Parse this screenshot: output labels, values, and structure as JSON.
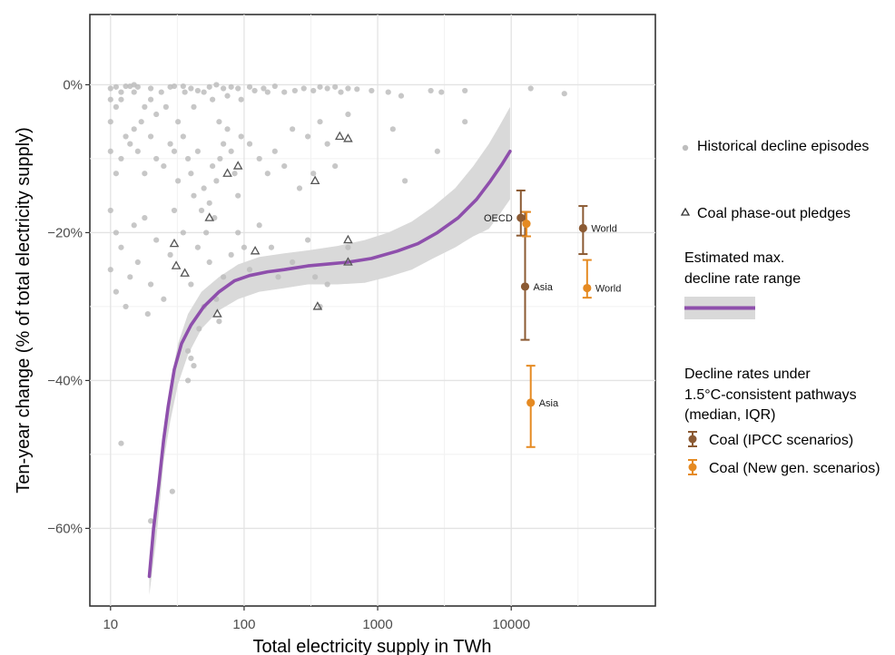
{
  "chart_data": {
    "type": "scatter",
    "xlabel": "Total electricity supply in TWh",
    "ylabel": "Ten-year change (% of total electricity supply)",
    "x_scale": "log10",
    "xlim": [
      7,
      120000
    ],
    "ylim": [
      -70.5,
      9.5
    ],
    "x_ticks": [
      {
        "value": 10,
        "label": "10"
      },
      {
        "value": 100,
        "label": "100"
      },
      {
        "value": 1000,
        "label": "1000"
      },
      {
        "value": 10000,
        "label": "10000"
      }
    ],
    "y_ticks": [
      {
        "value": 0,
        "label": "0%"
      },
      {
        "value": -20,
        "label": "−20%"
      },
      {
        "value": -40,
        "label": "−40%"
      },
      {
        "value": -60,
        "label": "−60%"
      }
    ],
    "grid": true,
    "legend_position": "right",
    "legend": {
      "historical": "Historical decline episodes",
      "pledges": "Coal phase-out pledges",
      "max_rate_line1": "Estimated max.",
      "max_rate_line2": "decline rate range",
      "pathways_line1": "Decline rates under",
      "pathways_line2": "1.5°C-consistent pathways",
      "pathways_line3": "(median, IQR)",
      "ipcc": "Coal (IPCC scenarios)",
      "newgen": "Coal (New gen. scenarios)"
    },
    "colors": {
      "historical": "#bdbdbd",
      "curve": "#8e4fac",
      "band": "#d9d9d9",
      "ipcc": "#8b5a33",
      "newgen": "#e58a22",
      "pledge": "#555555"
    },
    "historical_decline_episodes": [
      [
        10,
        -0.5
      ],
      [
        10,
        -2
      ],
      [
        10,
        -5
      ],
      [
        11,
        -0.3
      ],
      [
        11,
        -3
      ],
      [
        12,
        -1
      ],
      [
        12,
        -2
      ],
      [
        13,
        -0.2
      ],
      [
        14,
        -0.2
      ],
      [
        15,
        0
      ],
      [
        15,
        -1
      ],
      [
        16,
        -0.3
      ],
      [
        17,
        -5
      ],
      [
        18,
        -3
      ],
      [
        20,
        -0.5
      ],
      [
        20,
        -2
      ],
      [
        22,
        -4
      ],
      [
        24,
        -1
      ],
      [
        26,
        -3
      ],
      [
        28,
        -0.3
      ],
      [
        30,
        -0.2
      ],
      [
        32,
        -5
      ],
      [
        35,
        -0.2
      ],
      [
        36,
        -1
      ],
      [
        40,
        -0.5
      ],
      [
        42,
        -3
      ],
      [
        45,
        -0.8
      ],
      [
        50,
        -1
      ],
      [
        55,
        -0.3
      ],
      [
        58,
        -2
      ],
      [
        62,
        0
      ],
      [
        65,
        -5
      ],
      [
        70,
        -0.5
      ],
      [
        75,
        -1.5
      ],
      [
        80,
        -0.3
      ],
      [
        90,
        -0.5
      ],
      [
        95,
        -2
      ],
      [
        110,
        -0.3
      ],
      [
        120,
        -0.8
      ],
      [
        140,
        -0.5
      ],
      [
        150,
        -1
      ],
      [
        170,
        -0.2
      ],
      [
        200,
        -1
      ],
      [
        240,
        -0.8
      ],
      [
        280,
        -0.5
      ],
      [
        330,
        -0.8
      ],
      [
        370,
        -0.3
      ],
      [
        420,
        -0.5
      ],
      [
        480,
        -0.3
      ],
      [
        530,
        -1
      ],
      [
        600,
        -0.5
      ],
      [
        700,
        -0.6
      ],
      [
        900,
        -0.8
      ],
      [
        1200,
        -1
      ],
      [
        1500,
        -1.5
      ],
      [
        2500,
        -0.8
      ],
      [
        3000,
        -1
      ],
      [
        4500,
        -0.8
      ],
      [
        14000,
        -0.5
      ],
      [
        25000,
        -1.2
      ],
      [
        10,
        -9
      ],
      [
        11,
        -12
      ],
      [
        12,
        -10
      ],
      [
        13,
        -7
      ],
      [
        14,
        -8
      ],
      [
        15,
        -6
      ],
      [
        16,
        -9
      ],
      [
        18,
        -12
      ],
      [
        20,
        -7
      ],
      [
        22,
        -10
      ],
      [
        25,
        -11
      ],
      [
        28,
        -8
      ],
      [
        30,
        -9
      ],
      [
        32,
        -13
      ],
      [
        35,
        -7
      ],
      [
        38,
        -10
      ],
      [
        40,
        -12
      ],
      [
        42,
        -15
      ],
      [
        45,
        -9
      ],
      [
        48,
        -17
      ],
      [
        50,
        -14
      ],
      [
        52,
        -20
      ],
      [
        55,
        -16
      ],
      [
        58,
        -11
      ],
      [
        62,
        -13
      ],
      [
        66,
        -10
      ],
      [
        70,
        -8
      ],
      [
        75,
        -6
      ],
      [
        80,
        -9
      ],
      [
        85,
        -12
      ],
      [
        90,
        -15
      ],
      [
        95,
        -7
      ],
      [
        110,
        -8
      ],
      [
        130,
        -10
      ],
      [
        150,
        -12
      ],
      [
        170,
        -9
      ],
      [
        200,
        -11
      ],
      [
        230,
        -6
      ],
      [
        260,
        -14
      ],
      [
        300,
        -7
      ],
      [
        330,
        -12
      ],
      [
        370,
        -5
      ],
      [
        420,
        -8
      ],
      [
        480,
        -11
      ],
      [
        600,
        -4
      ],
      [
        1300,
        -6
      ],
      [
        1600,
        -13
      ],
      [
        2800,
        -9
      ],
      [
        4500,
        -5
      ],
      [
        10,
        -17
      ],
      [
        10,
        -25
      ],
      [
        11,
        -20
      ],
      [
        11,
        -28
      ],
      [
        12,
        -22
      ],
      [
        13,
        -30
      ],
      [
        14,
        -26
      ],
      [
        15,
        -19
      ],
      [
        16,
        -24
      ],
      [
        18,
        -18
      ],
      [
        20,
        -27
      ],
      [
        22,
        -21
      ],
      [
        25,
        -29
      ],
      [
        28,
        -23
      ],
      [
        30,
        -17
      ],
      [
        35,
        -20
      ],
      [
        40,
        -27
      ],
      [
        45,
        -22
      ],
      [
        50,
        -30
      ],
      [
        55,
        -24
      ],
      [
        60,
        -18
      ],
      [
        62,
        -29
      ],
      [
        65,
        -32
      ],
      [
        70,
        -26
      ],
      [
        80,
        -23
      ],
      [
        90,
        -20
      ],
      [
        100,
        -22
      ],
      [
        110,
        -25
      ],
      [
        130,
        -19
      ],
      [
        160,
        -22
      ],
      [
        180,
        -26
      ],
      [
        230,
        -24
      ],
      [
        300,
        -21
      ],
      [
        340,
        -26
      ],
      [
        370,
        -30
      ],
      [
        420,
        -27
      ],
      [
        600,
        -22
      ],
      [
        19,
        -31
      ],
      [
        38,
        -36
      ],
      [
        40,
        -37
      ],
      [
        42,
        -38
      ],
      [
        46,
        -33
      ],
      [
        38,
        -40
      ],
      [
        12,
        -48.5
      ],
      [
        29,
        -55
      ],
      [
        20,
        -59
      ]
    ],
    "coal_phase_out_pledges": [
      [
        30,
        -21.5
      ],
      [
        31,
        -24.5
      ],
      [
        36,
        -25.5
      ],
      [
        55,
        -18
      ],
      [
        63,
        -31
      ],
      [
        75,
        -12
      ],
      [
        90,
        -11
      ],
      [
        121,
        -22.5
      ],
      [
        340,
        -13
      ],
      [
        355,
        -30
      ],
      [
        520,
        -7
      ],
      [
        600,
        -7.3
      ],
      [
        600,
        -21
      ],
      [
        600,
        -24
      ]
    ],
    "max_decline_rate_curve": [
      [
        19.5,
        -66.5
      ],
      [
        21,
        -60
      ],
      [
        23,
        -54
      ],
      [
        25,
        -48
      ],
      [
        27,
        -43.5
      ],
      [
        30,
        -38.5
      ],
      [
        34,
        -35
      ],
      [
        40,
        -32.5
      ],
      [
        50,
        -30
      ],
      [
        65,
        -28
      ],
      [
        85,
        -26.5
      ],
      [
        110,
        -25.8
      ],
      [
        150,
        -25.3
      ],
      [
        200,
        -25
      ],
      [
        300,
        -24.5
      ],
      [
        450,
        -24.2
      ],
      [
        600,
        -24
      ],
      [
        900,
        -23.5
      ],
      [
        1400,
        -22.5
      ],
      [
        2000,
        -21.5
      ],
      [
        2800,
        -20
      ],
      [
        4000,
        -18
      ],
      [
        5500,
        -15.5
      ],
      [
        7000,
        -13
      ],
      [
        8500,
        -10.8
      ],
      [
        9800,
        -9
      ]
    ],
    "band_upper": [
      [
        19.5,
        -64
      ],
      [
        22,
        -56
      ],
      [
        25,
        -47
      ],
      [
        28,
        -40.5
      ],
      [
        32,
        -35
      ],
      [
        38,
        -31
      ],
      [
        48,
        -28
      ],
      [
        65,
        -26
      ],
      [
        90,
        -24.3
      ],
      [
        130,
        -23.3
      ],
      [
        200,
        -22.8
      ],
      [
        300,
        -22.4
      ],
      [
        500,
        -21.8
      ],
      [
        800,
        -21
      ],
      [
        1200,
        -20
      ],
      [
        1800,
        -18.5
      ],
      [
        2600,
        -16.5
      ],
      [
        3800,
        -14
      ],
      [
        5200,
        -11
      ],
      [
        6800,
        -8
      ],
      [
        8200,
        -5.5
      ],
      [
        9800,
        -3
      ]
    ],
    "band_lower": [
      [
        19.5,
        -69
      ],
      [
        22,
        -61.5
      ],
      [
        25,
        -51
      ],
      [
        28,
        -45.5
      ],
      [
        32,
        -40.5
      ],
      [
        38,
        -36.5
      ],
      [
        48,
        -33
      ],
      [
        65,
        -30.5
      ],
      [
        90,
        -29
      ],
      [
        130,
        -28
      ],
      [
        200,
        -27.5
      ],
      [
        300,
        -27
      ],
      [
        500,
        -27
      ],
      [
        800,
        -26.8
      ],
      [
        1200,
        -26
      ],
      [
        1800,
        -25
      ],
      [
        2600,
        -23.5
      ],
      [
        3800,
        -22
      ],
      [
        5200,
        -20.5
      ],
      [
        6800,
        -19.5
      ],
      [
        8200,
        -17.5
      ],
      [
        9800,
        -15.5
      ]
    ],
    "pathway_points": [
      {
        "scheme": "ipcc",
        "label": "OECD",
        "label_side": "left",
        "x": 11800,
        "median": -18.0,
        "q_low": -20.4,
        "q_high": -14.3
      },
      {
        "scheme": "ipcc",
        "label": "Asia",
        "label_side": "right",
        "x": 12700,
        "median": -27.3,
        "q_low": -34.5,
        "q_high": -17.2
      },
      {
        "scheme": "ipcc",
        "label": "World",
        "label_side": "right",
        "x": 34500,
        "median": -19.4,
        "q_low": -22.9,
        "q_high": -16.4
      },
      {
        "scheme": "newgen",
        "label": "",
        "label_side": "right",
        "x": 13000,
        "median": -18.8,
        "q_low": -20.5,
        "q_high": -17.2
      },
      {
        "scheme": "newgen",
        "label": "Asia",
        "label_side": "right",
        "x": 14000,
        "median": -43.0,
        "q_low": -49.0,
        "q_high": -38.0
      },
      {
        "scheme": "newgen",
        "label": "World",
        "label_side": "right",
        "x": 37000,
        "median": -27.5,
        "q_low": -28.8,
        "q_high": -23.7
      }
    ]
  }
}
